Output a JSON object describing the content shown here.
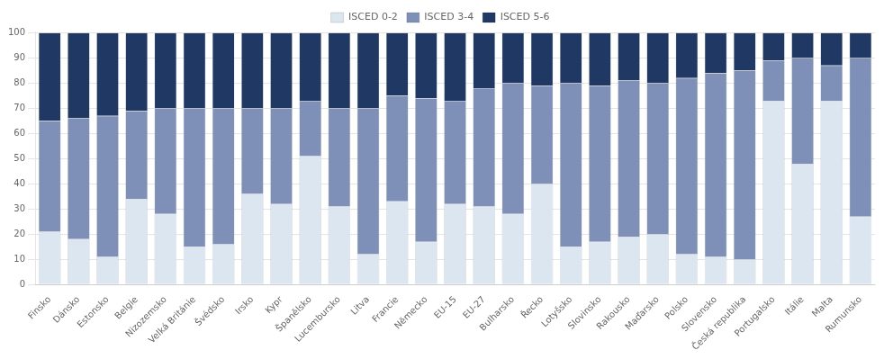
{
  "chart_data": {
    "type": "bar",
    "categories": [
      "Finsko",
      "Dánsko",
      "Estonsko",
      "Belgie",
      "Nizozemsko",
      "Velká Británie",
      "Švédsko",
      "Irsko",
      "Kypr",
      "Španělsko",
      "Lucembursko",
      "Litva",
      "Francie",
      "Německo",
      "EU-15",
      "EU-27",
      "Bulharsko",
      "Řecko",
      "Lotyšsko",
      "Slovinsko",
      "Rakousko",
      "Maďarsko",
      "Polsko",
      "Slovensko",
      "Česká republika",
      "Portugalsko",
      "Itálie",
      "Malta",
      "Rumunsko"
    ],
    "series": [
      {
        "name": "ISCED 0-2",
        "color": "#dce6f1",
        "values": [
          21,
          18,
          11,
          34,
          28,
          15,
          16,
          36,
          32,
          51,
          31,
          12,
          33,
          17,
          32,
          31,
          28,
          40,
          15,
          17,
          19,
          20,
          12,
          11,
          10,
          73,
          48,
          73,
          27
        ]
      },
      {
        "name": "ISCED 3-4",
        "color": "#7f90b8",
        "values": [
          44,
          48,
          56,
          35,
          42,
          55,
          54,
          34,
          38,
          22,
          39,
          58,
          42,
          57,
          41,
          47,
          52,
          39,
          65,
          62,
          62,
          60,
          70,
          73,
          75,
          16,
          42,
          14,
          63
        ]
      },
      {
        "name": "ISCED 5-6",
        "color": "#1f3864",
        "values": [
          35,
          34,
          33,
          31,
          30,
          30,
          30,
          30,
          30,
          27,
          30,
          30,
          25,
          26,
          27,
          22,
          20,
          21,
          20,
          21,
          19,
          20,
          18,
          16,
          15,
          11,
          10,
          13,
          10
        ]
      }
    ],
    "stacked": true,
    "ylim": [
      0,
      100.5
    ],
    "yticks": [
      0,
      10,
      20,
      30,
      40,
      50,
      60,
      70,
      80,
      90,
      100
    ],
    "grid": true,
    "legend": "top"
  }
}
